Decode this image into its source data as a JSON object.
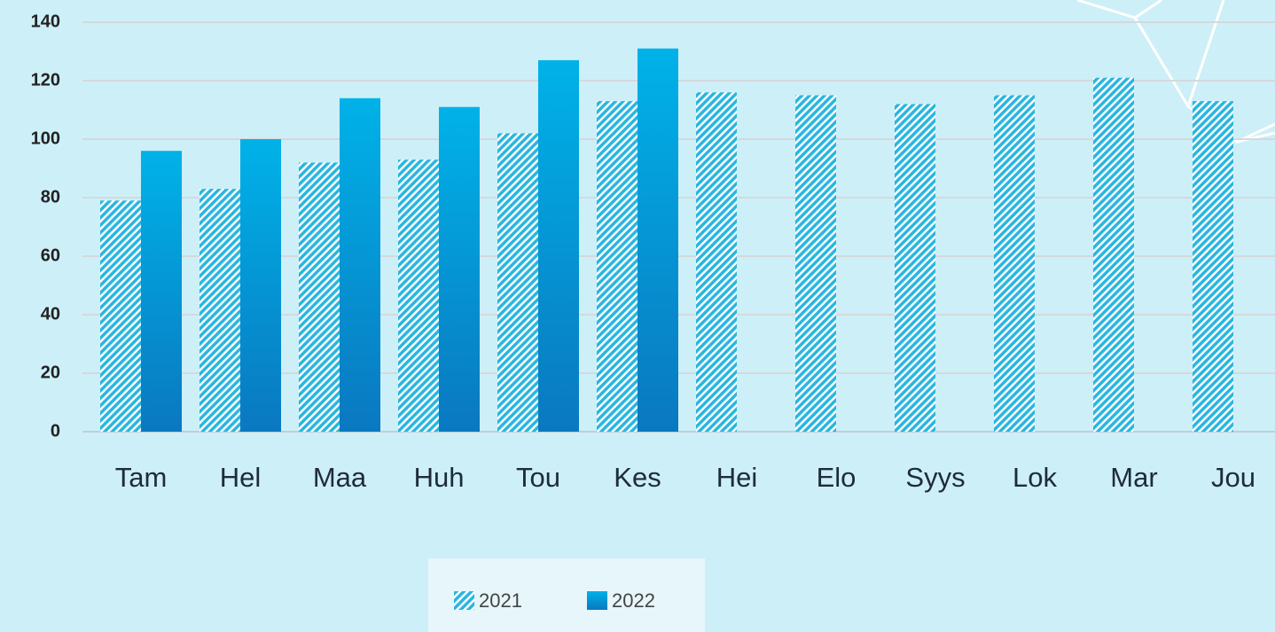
{
  "chart_data": {
    "type": "bar",
    "categories": [
      "Tam",
      "Hel",
      "Maa",
      "Huh",
      "Tou",
      "Kes",
      "Hei",
      "Elo",
      "Syys",
      "Lok",
      "Mar",
      "Jou"
    ],
    "series": [
      {
        "name": "2021",
        "color": "#29b6e0",
        "style": "hatch",
        "values": [
          79,
          83,
          92,
          93,
          102,
          113,
          116,
          115,
          112,
          115,
          121,
          113
        ]
      },
      {
        "name": "2022",
        "color": "#00b2e8",
        "style": "gradient",
        "values": [
          96,
          100,
          114,
          111,
          127,
          131,
          null,
          null,
          null,
          null,
          null,
          null
        ]
      }
    ],
    "ylim": [
      0,
      140
    ],
    "yticks": [
      0,
      20,
      40,
      60,
      80,
      100,
      120,
      140
    ],
    "grid": true,
    "legend": "bottom"
  }
}
